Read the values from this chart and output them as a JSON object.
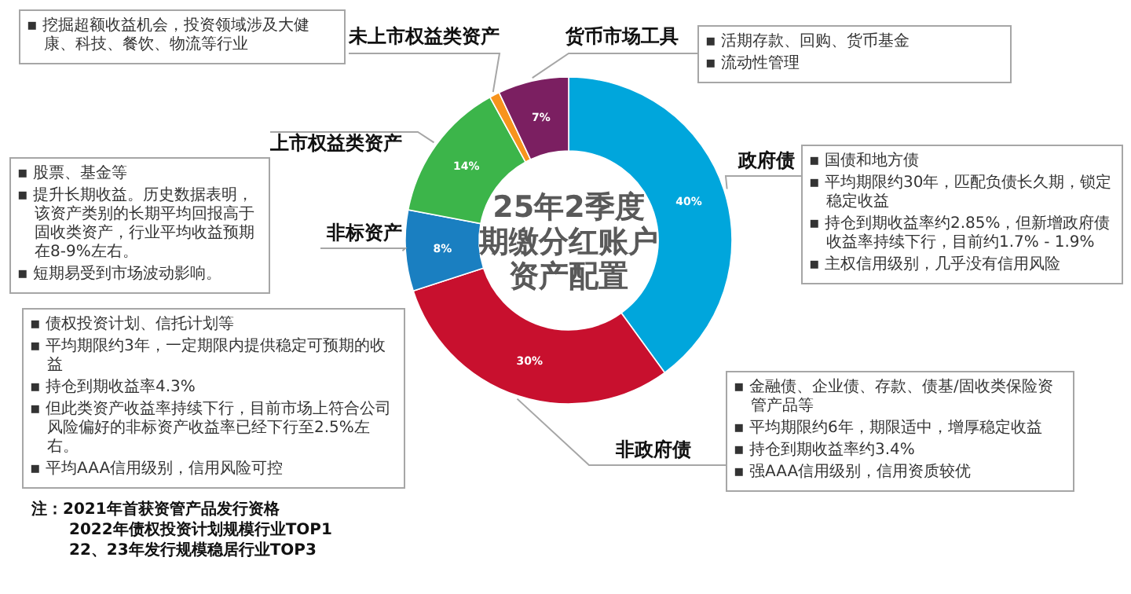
{
  "chart_data": {
    "type": "donut",
    "title": "25年2季度期缴分红账户资产配置",
    "categories": [
      "政府债",
      "非政府债",
      "非标资产",
      "上市权益类资产",
      "未上市权益类资产",
      "货币市场工具"
    ],
    "values": [
      40,
      30,
      8,
      14,
      1,
      7
    ],
    "colors": [
      "#00a6dc",
      "#c8102e",
      "#1a7fc1",
      "#3cb54a",
      "#f7941d",
      "#7b1f61"
    ],
    "value_labels": [
      "40%",
      "30%",
      "8%",
      "14%",
      null,
      "7%"
    ],
    "annotations": [
      "▪ 挖掘超额收益机会，投资领域涉及大健康、科技、餐饮、物流等行业",
      "▪ 活期存款、回购、货币基金",
      "▪ 流动性管理",
      "▪ 股票、基金等",
      "▪ 提升长期收益。历史数据表明，该资产类别的长期平均回报高于固收类资产，行业平均收益预期在8-9%左右。",
      "▪ 短期易受到市场波动影响。",
      "▪ 国债和地方债",
      "▪ 平均期限约30年，匹配负债长久期，锁定稳定收益",
      "▪ 持仓到期收益率约2.85%，但新增政府债收益率持续下行，目前约1.7% - 1.9%",
      "▪ 主权信用级别，几乎没有信用风险",
      "▪ 债权投资计划、信托计划等",
      "▪ 平均期限约3年，一定期限内提供稳定可预期的收益",
      "▪ 持仓到期收益率4.3%",
      "▪ 但此类资产收益率持续下行，目前市场上符合公司风险偏好的非标资产收益率已经下行至2.5%左右。",
      "▪ 平均AAA信用级别，信用风险可控",
      "▪ 金融债、企业债、存款、债基/固收类保险资管产品等",
      "▪ 平均期限约6年，期限适中，增厚稳定收益",
      "▪ 持仓到期收益率约3.4%",
      "▪ 强AAA信用级别，信用资质较优",
      "注：2021年首获资管产品发行资格",
      "2022年债权投资计划规模行业TOP1",
      "22、23年发行规模稳居行业TOP3"
    ]
  }
}
